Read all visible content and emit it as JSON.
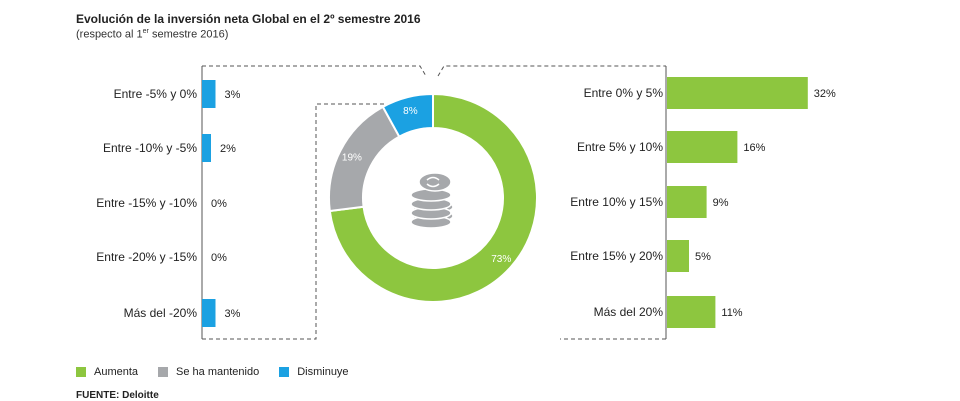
{
  "title": "Evolución de la inversión neta Global en el 2º semestre 2016",
  "subtitle_pre": "(respecto al 1",
  "subtitle_sup": "er",
  "subtitle_post": " semestre 2016)",
  "source": "FUENTE: Deloitte",
  "colors": {
    "aumenta": "#8dc63f",
    "mantenido": "#a6a8ab",
    "disminuye": "#1ba1e2",
    "dash": "#555555",
    "icon": "#a6a8ab"
  },
  "chart_data": [
    {
      "type": "bar",
      "orientation": "horizontal",
      "categories": [
        "Entre -5% y  0%",
        "Entre -10% y -5%",
        "Entre -15% y -10%",
        "Entre -20% y  -15%",
        "Más del -20%"
      ],
      "values": [
        3,
        2,
        0,
        0,
        3
      ],
      "value_labels": [
        "3%",
        "2%",
        "0%",
        "0%",
        "3%"
      ],
      "color": "#1ba1e2"
    },
    {
      "type": "pie",
      "labels": [
        "Aumenta",
        "Se ha mantenido",
        "Disminuye"
      ],
      "values": [
        73,
        19,
        8
      ],
      "value_labels": [
        "73%",
        "19%",
        "8%"
      ],
      "colors": [
        "#8dc63f",
        "#a6a8ab",
        "#1ba1e2"
      ],
      "icon": "coins-icon"
    },
    {
      "type": "bar",
      "orientation": "horizontal",
      "categories": [
        "Entre 0% y 5%",
        "Entre 5% y 10%",
        "Entre 10% y 15%",
        "Entre 15% y 20%",
        "Más del 20%"
      ],
      "values": [
        32,
        16,
        9,
        5,
        11
      ],
      "value_labels": [
        "32%",
        "16%",
        "9%",
        "5%",
        "11%"
      ],
      "color": "#8dc63f"
    }
  ],
  "legend": [
    {
      "label": "Aumenta",
      "color": "#8dc63f"
    },
    {
      "label": "Se ha mantenido",
      "color": "#a6a8ab"
    },
    {
      "label": "Disminuye",
      "color": "#1ba1e2"
    }
  ]
}
